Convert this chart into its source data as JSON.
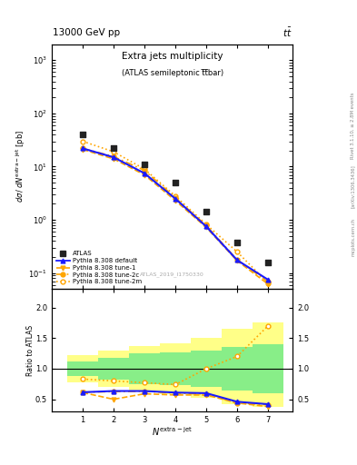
{
  "header_left": "13000 GeV pp",
  "header_right": "tt̅",
  "title_main": "Extra jets multiplicity",
  "title_sub": "(ATLAS semileptonic t̅t̅bar)",
  "ylabel_main": "$d\\sigma\\,/\\,dN^{\\mathrm{extra-jet}}$ [pb]",
  "ylabel_ratio": "Ratio to ATLAS",
  "xlabel": "$N^{\\mathrm{extra\\!-\\!jet}}$",
  "watermark": "ATLAS_2019_I1750330",
  "rivet_text": "Rivet 3.1.10, ≥ 2.8M events",
  "arxiv_text": "[arXiv:1306.3436]",
  "mcplots_text": "mcplots.cern.ch",
  "x_atlas": [
    1,
    2,
    3,
    4,
    5,
    6,
    7
  ],
  "y_atlas": [
    40.0,
    22.0,
    11.0,
    5.0,
    1.4,
    0.38,
    0.16
  ],
  "y_default": [
    22.0,
    15.0,
    7.5,
    2.5,
    0.75,
    0.175,
    0.075
  ],
  "y_tune1": [
    21.0,
    14.0,
    7.0,
    2.3,
    0.72,
    0.17,
    0.062
  ],
  "y_tune2c": [
    22.0,
    15.5,
    8.5,
    2.6,
    0.78,
    0.178,
    0.068
  ],
  "y_tune2m": [
    30.0,
    19.0,
    9.0,
    2.8,
    0.82,
    0.25,
    0.065
  ],
  "ratio_default": [
    0.615,
    0.635,
    0.635,
    0.61,
    0.6,
    0.46,
    0.42
  ],
  "ratio_tune1": [
    0.61,
    0.5,
    0.59,
    0.57,
    0.57,
    0.44,
    0.38
  ],
  "ratio_tune2c": [
    0.615,
    0.625,
    0.63,
    0.6,
    0.585,
    0.44,
    0.41
  ],
  "ratio_tune2m": [
    0.83,
    0.8,
    0.77,
    0.74,
    1.0,
    1.2,
    1.7
  ],
  "green_lo": [
    0.88,
    0.82,
    0.75,
    0.73,
    0.7,
    0.65,
    0.6
  ],
  "green_hi": [
    1.12,
    1.18,
    1.25,
    1.27,
    1.3,
    1.35,
    1.4
  ],
  "yellow_lo": [
    0.78,
    0.7,
    0.63,
    0.58,
    0.52,
    0.42,
    0.38
  ],
  "yellow_hi": [
    1.22,
    1.3,
    1.37,
    1.42,
    1.5,
    1.65,
    1.75
  ],
  "color_atlas": "#222222",
  "color_default": "#1a1aff",
  "color_tune": "#FFA500",
  "xlim": [
    0.0,
    7.8
  ],
  "ylim_main": [
    0.05,
    2000
  ],
  "ylim_ratio": [
    0.3,
    2.3
  ],
  "yticks_ratio": [
    0.5,
    1.0,
    1.5,
    2.0
  ]
}
